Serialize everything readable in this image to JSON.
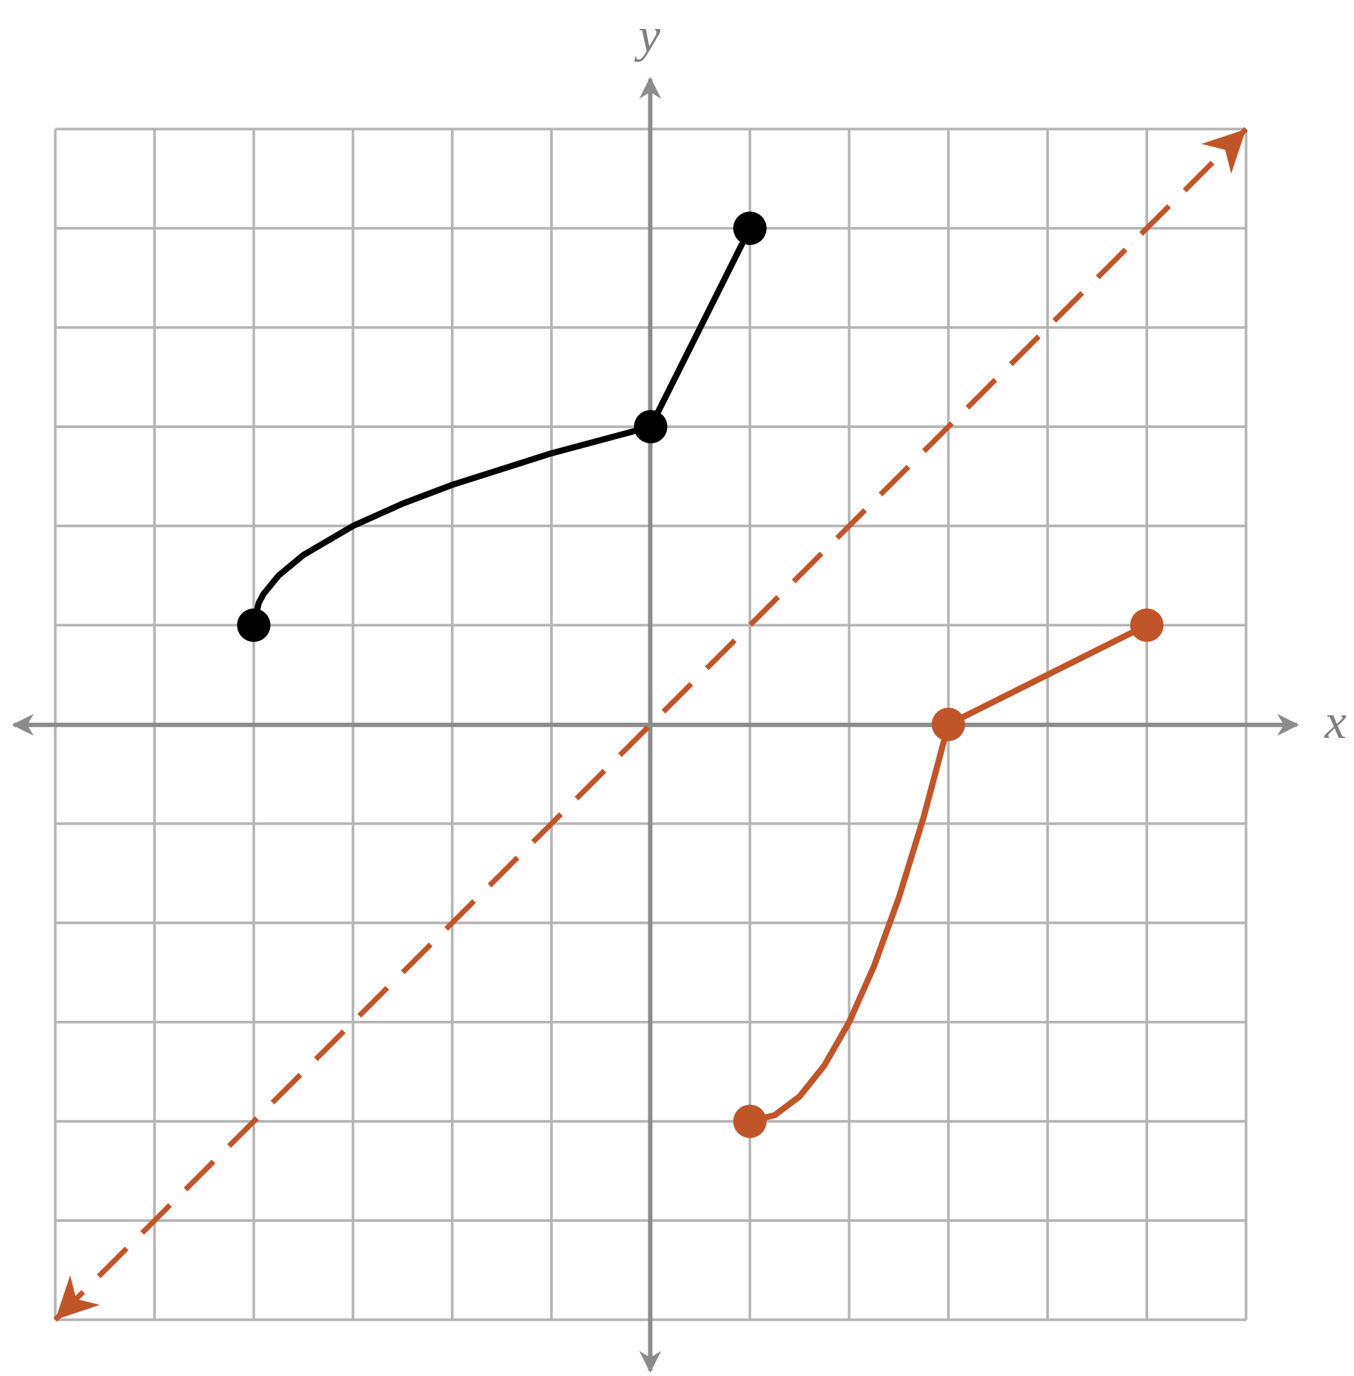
{
  "chart_data": {
    "type": "line",
    "x_label": "x",
    "y_label": "y",
    "xlim": [
      -6,
      6
    ],
    "ylim": [
      -6,
      6
    ],
    "xticks": [
      -6,
      -5,
      -4,
      -3,
      -2,
      -1,
      0,
      1,
      2,
      3,
      4,
      5,
      6
    ],
    "yticks": [
      -6,
      -5,
      -4,
      -3,
      -2,
      -1,
      0,
      1,
      2,
      3,
      4,
      5,
      6
    ],
    "grid": true,
    "series": [
      {
        "type": "line",
        "color": "#000000",
        "x": [
          -4,
          -3.95,
          -3.9,
          -3.75,
          -3.5,
          -3,
          -2.5,
          -2,
          -1,
          0,
          1
        ],
        "values": [
          1,
          1.2236,
          1.3162,
          1.5,
          1.7071,
          2,
          2.2247,
          2.4142,
          2.7321,
          3,
          5
        ]
      },
      {
        "type": "line",
        "color": "#c1552a",
        "x": [
          1,
          1.25,
          1.5,
          1.75,
          2,
          2.25,
          2.5,
          2.75,
          3,
          5
        ],
        "values": [
          -4,
          -3.9375,
          -3.75,
          -3.4375,
          -3,
          -2.4375,
          -1.75,
          -0.9375,
          0,
          1
        ]
      },
      {
        "type": "scatter",
        "color": "#000000",
        "x": [
          -4,
          0,
          1
        ],
        "values": [
          1,
          3,
          5
        ]
      },
      {
        "type": "scatter",
        "color": "#c1552a",
        "x": [
          1,
          3,
          5
        ],
        "values": [
          -4,
          0,
          1
        ]
      },
      {
        "type": "line",
        "color": "#c1552a",
        "dashed": true,
        "arrows": true,
        "x": [
          -6,
          6
        ],
        "values": [
          -6,
          6
        ]
      }
    ]
  }
}
